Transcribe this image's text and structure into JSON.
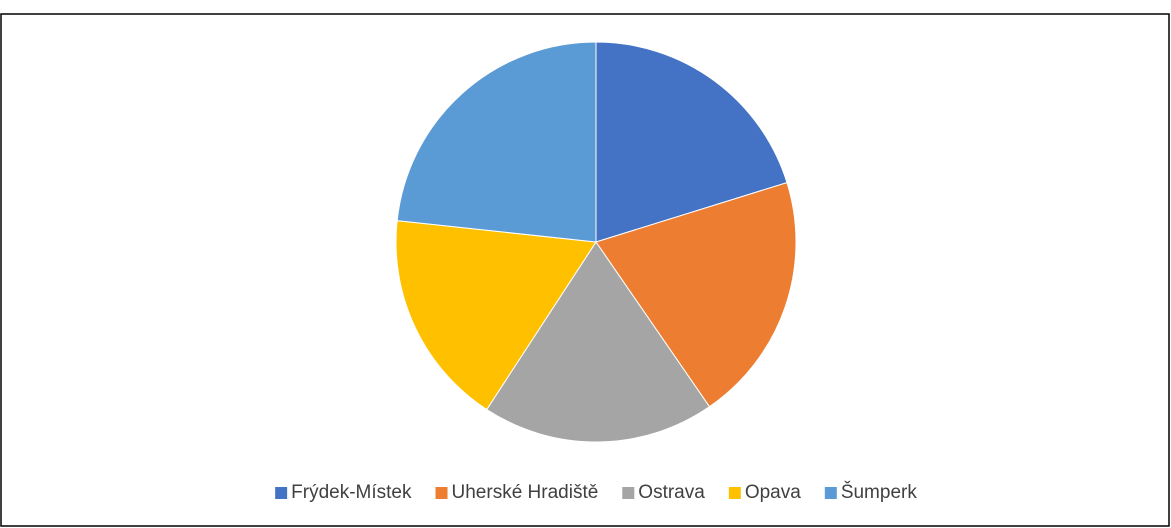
{
  "chart_data": {
    "type": "pie",
    "categories": [
      "Frýdek-Místek",
      "Uherské Hradiště",
      "Ostrava",
      "Opava",
      "Šumperk"
    ],
    "values": [
      20.2,
      20.2,
      18.8,
      17.5,
      23.3
    ],
    "colors": [
      "#4472c4",
      "#ed7d31",
      "#a5a5a5",
      "#ffc000",
      "#5b9bd5"
    ],
    "legend": "bottom"
  }
}
